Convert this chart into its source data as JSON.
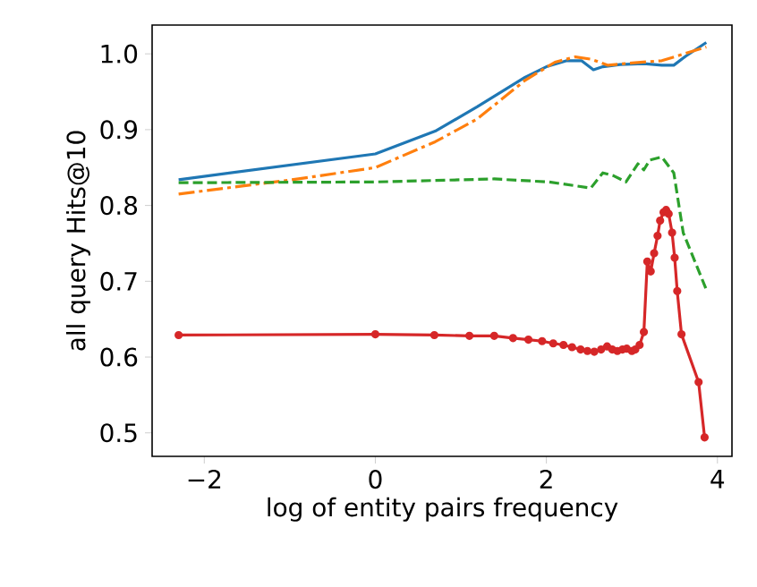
{
  "chart_data": {
    "type": "line",
    "xlabel": "log of entity pairs frequency",
    "ylabel": "all query Hits@10",
    "xlim": [
      -2.61,
      4.17
    ],
    "ylim": [
      0.469,
      1.038
    ],
    "xticks": [
      {
        "value": -2,
        "label": "−2"
      },
      {
        "value": 0,
        "label": "0"
      },
      {
        "value": 2,
        "label": "2"
      },
      {
        "value": 4,
        "label": "4"
      }
    ],
    "yticks": [
      {
        "value": 0.5,
        "label": "0.5"
      },
      {
        "value": 0.6,
        "label": "0.6"
      },
      {
        "value": 0.7,
        "label": "0.7"
      },
      {
        "value": 0.8,
        "label": "0.8"
      },
      {
        "value": 0.9,
        "label": "0.9"
      },
      {
        "value": 1.0,
        "label": "1.0"
      }
    ],
    "series": [
      {
        "color": "#1f77b4",
        "line_style": "solid",
        "marker": "none",
        "x": [
          -2.3,
          0,
          0.7,
          1.19,
          1.75,
          2.0,
          2.24,
          2.41,
          2.55,
          2.66,
          2.86,
          3.14,
          3.35,
          3.49,
          3.63,
          3.87
        ],
        "values": [
          0.834,
          0.868,
          0.898,
          0.93,
          0.969,
          0.983,
          0.991,
          0.991,
          0.979,
          0.983,
          0.986,
          0.987,
          0.985,
          0.985,
          0.997,
          1.015
        ]
      },
      {
        "color": "#ff7f0e",
        "line_style": "dashdot",
        "marker": "none",
        "x": [
          -2.3,
          -0.9,
          0,
          0.7,
          1.19,
          1.75,
          2.1,
          2.34,
          2.52,
          2.72,
          3.0,
          3.35,
          3.87
        ],
        "values": [
          0.815,
          0.835,
          0.85,
          0.884,
          0.914,
          0.965,
          0.989,
          0.996,
          0.993,
          0.985,
          0.988,
          0.991,
          1.009
        ]
      },
      {
        "color": "#2ca02c",
        "line_style": "dashed",
        "marker": "none",
        "x": [
          -2.3,
          0,
          1.39,
          2.03,
          2.52,
          2.66,
          2.79,
          2.93,
          3.07,
          3.14,
          3.21,
          3.35,
          3.49,
          3.6,
          3.87
        ],
        "values": [
          0.83,
          0.831,
          0.835,
          0.831,
          0.823,
          0.843,
          0.839,
          0.831,
          0.855,
          0.847,
          0.86,
          0.864,
          0.843,
          0.764,
          0.689
        ]
      },
      {
        "color": "#d62728",
        "line_style": "solid",
        "marker": "circle",
        "x": [
          -2.3,
          0,
          0.69,
          1.1,
          1.39,
          1.61,
          1.79,
          1.95,
          2.08,
          2.2,
          2.3,
          2.4,
          2.48,
          2.56,
          2.64,
          2.71,
          2.77,
          2.83,
          2.89,
          2.94,
          3.0,
          3.04,
          3.09,
          3.14,
          3.18,
          3.22,
          3.26,
          3.3,
          3.33,
          3.37,
          3.4,
          3.43,
          3.47,
          3.5,
          3.53,
          3.58,
          3.78,
          3.85
        ],
        "values": [
          0.629,
          0.63,
          0.629,
          0.628,
          0.628,
          0.625,
          0.623,
          0.621,
          0.618,
          0.616,
          0.613,
          0.61,
          0.608,
          0.607,
          0.61,
          0.614,
          0.61,
          0.608,
          0.61,
          0.611,
          0.608,
          0.61,
          0.616,
          0.633,
          0.726,
          0.713,
          0.737,
          0.76,
          0.78,
          0.791,
          0.794,
          0.789,
          0.764,
          0.731,
          0.687,
          0.63,
          0.567,
          0.494
        ]
      }
    ]
  }
}
